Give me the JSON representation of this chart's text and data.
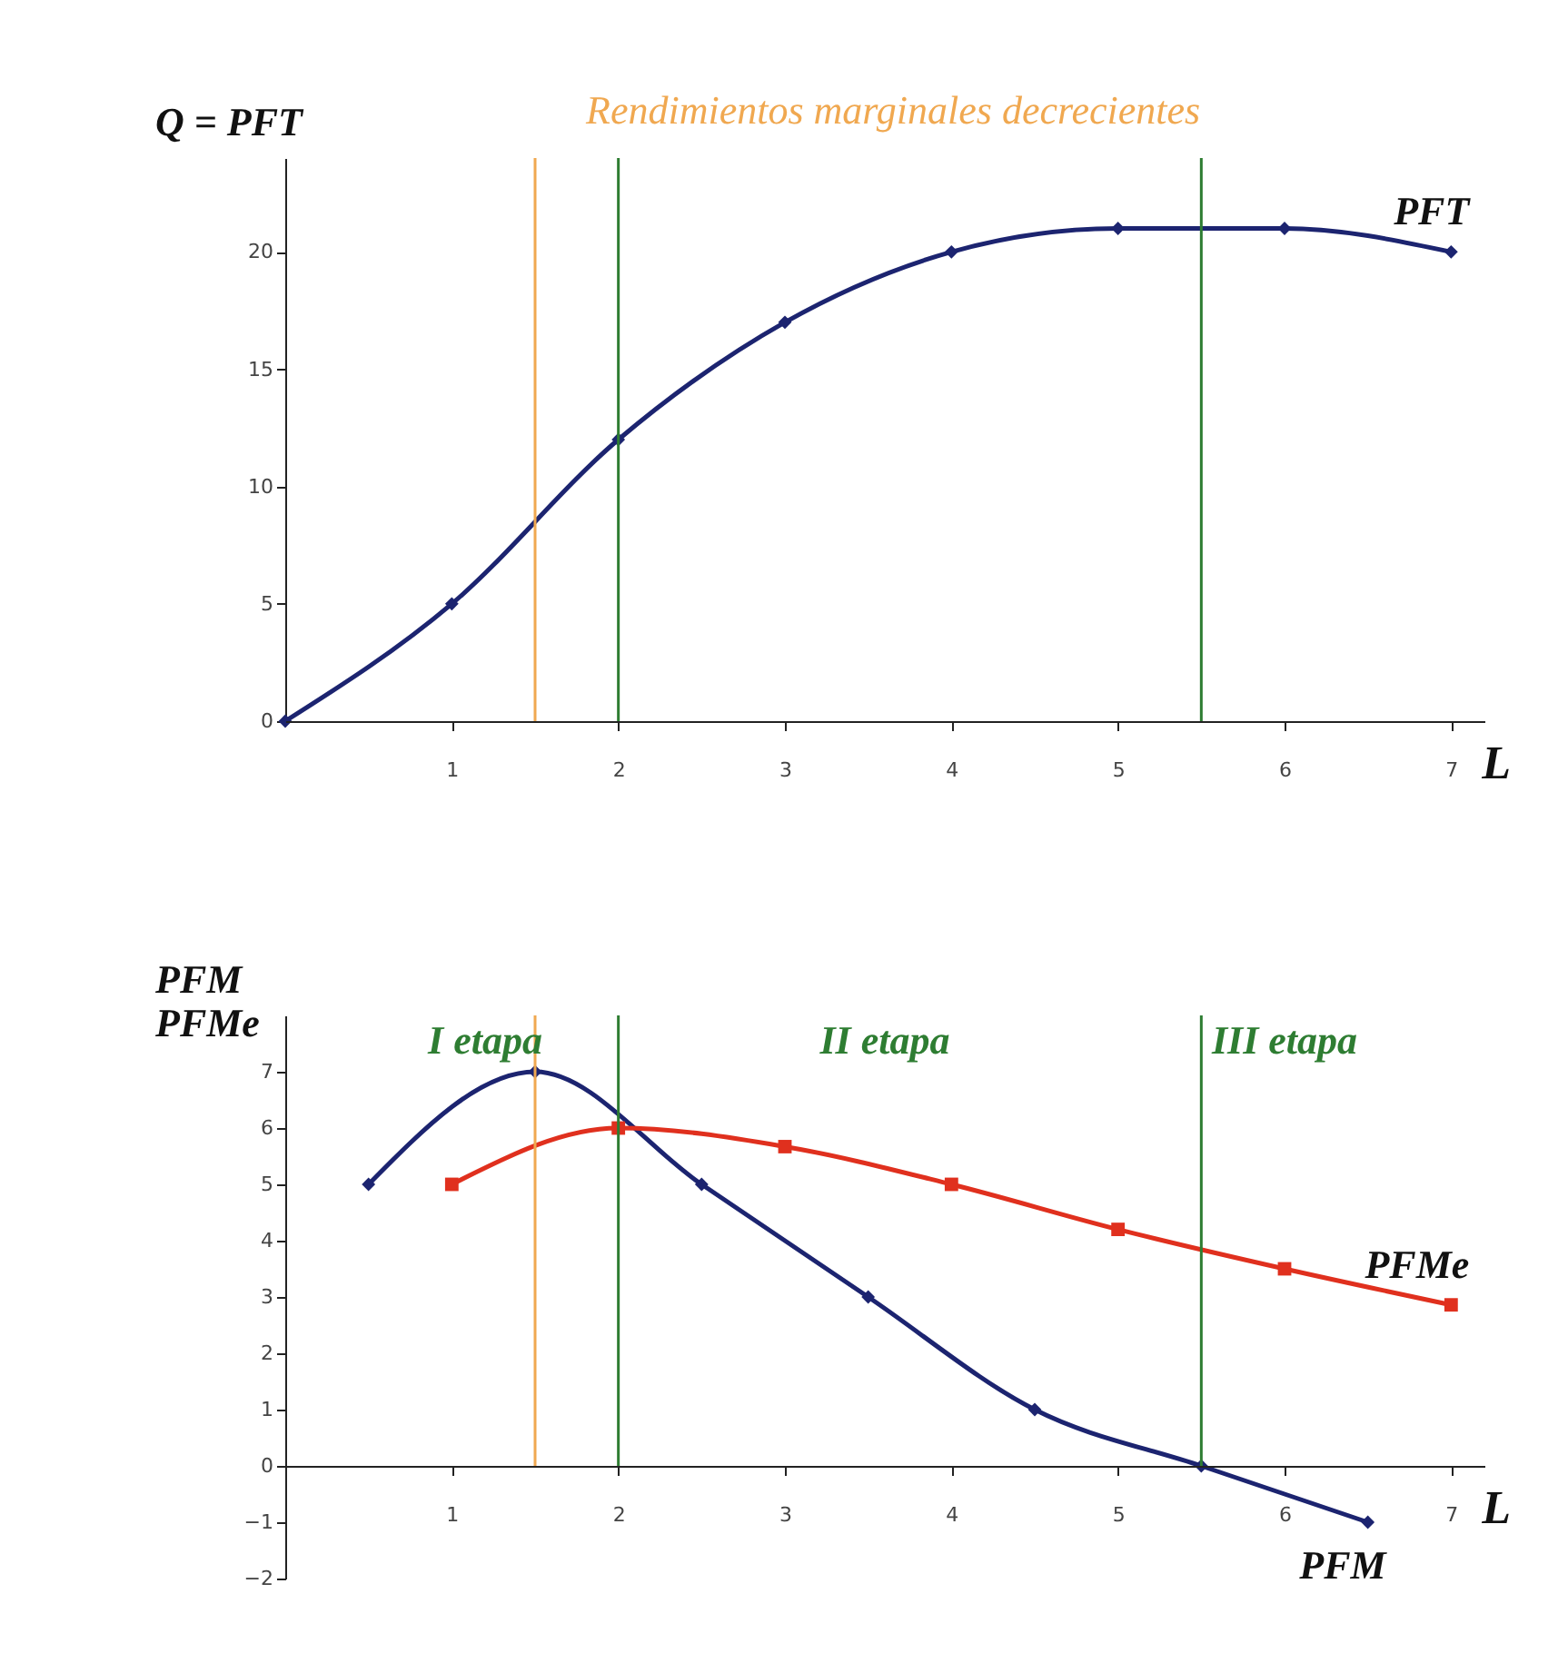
{
  "chart_data": [
    {
      "type": "line",
      "ylabel": "Q = PFT",
      "xlabel": "L",
      "xlim": [
        0,
        7.2
      ],
      "xticks": [
        1,
        2,
        3,
        4,
        5,
        6,
        7
      ],
      "ylim": [
        0,
        24
      ],
      "yticks": [
        0,
        5,
        10,
        15,
        20
      ],
      "grid": false,
      "marker": "diamond",
      "series": [
        {
          "name": "PFT",
          "color": "#1c2470",
          "x": [
            0,
            1,
            2,
            3,
            4,
            5,
            6,
            7
          ],
          "values": [
            0,
            5,
            12,
            17,
            20,
            21,
            21,
            20
          ]
        }
      ],
      "ref_lines": [
        {
          "axis": "x",
          "value": 1.5,
          "label": "Rendimientos marginales decrecientes",
          "color": "#f0a850"
        },
        {
          "axis": "x",
          "value": 2,
          "label": null,
          "color": "#2e7d32"
        },
        {
          "axis": "x",
          "value": 5.5,
          "label": null,
          "color": "#2e7d32"
        }
      ]
    },
    {
      "type": "line",
      "ylabel": "PFM\nPFMe",
      "xlabel": "L",
      "xlim": [
        0,
        7.2
      ],
      "xticks": [
        1,
        2,
        3,
        4,
        5,
        6,
        7
      ],
      "ylim": [
        -2,
        8
      ],
      "yticks": [
        -2,
        -1,
        0,
        1,
        2,
        3,
        4,
        5,
        6,
        7
      ],
      "grid": false,
      "series": [
        {
          "name": "PFM",
          "color": "#1c2470",
          "marker": "diamond",
          "x": [
            0.5,
            1.5,
            2.5,
            3.5,
            4.5,
            5.5,
            6.5
          ],
          "values": [
            5,
            7,
            5,
            3,
            1,
            0,
            -1
          ]
        },
        {
          "name": "PFMe",
          "color": "#e0301e",
          "marker": "square",
          "x": [
            1,
            2,
            3,
            4,
            5,
            6,
            7
          ],
          "values": [
            5,
            6,
            5.67,
            5,
            4.2,
            3.5,
            2.86
          ]
        }
      ],
      "ref_lines": [
        {
          "axis": "x",
          "value": 1.5,
          "label": null,
          "color": "#f0a850"
        },
        {
          "axis": "x",
          "value": 2,
          "label": null,
          "color": "#2e7d32"
        },
        {
          "axis": "x",
          "value": 5.5,
          "label": null,
          "color": "#2e7d32"
        }
      ],
      "annotations": [
        "I etapa",
        "II etapa",
        "III etapa"
      ]
    }
  ]
}
